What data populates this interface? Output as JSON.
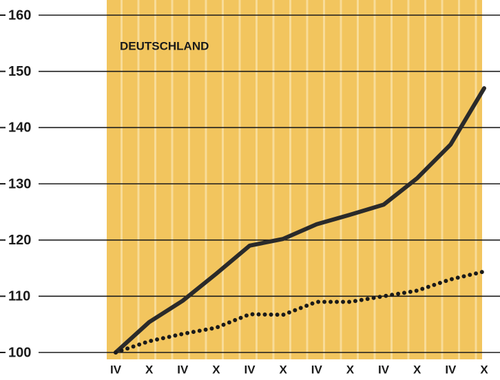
{
  "chart_data": {
    "type": "line",
    "title": "DEUTSCHLAND",
    "categories": [
      "IV",
      "X",
      "IV",
      "X",
      "IV",
      "X",
      "IV",
      "X",
      "IV",
      "X",
      "IV",
      "X"
    ],
    "series": [
      {
        "color": "#2a2a2a",
        "style": "solid",
        "values": [
          100,
          105.4,
          109.2,
          114,
          119,
          120.2,
          122.8,
          124.5,
          126.3,
          131,
          137,
          147
        ]
      },
      {
        "color": "#1a1a1a",
        "style": "dotted",
        "values": [
          100,
          102,
          103.3,
          104.4,
          106.8,
          106.7,
          109,
          109,
          110,
          111,
          113,
          114.4
        ]
      }
    ],
    "ylim": [
      100,
      160
    ],
    "yticks": [
      100,
      110,
      120,
      130,
      140,
      150,
      160
    ],
    "grid": true
  }
}
